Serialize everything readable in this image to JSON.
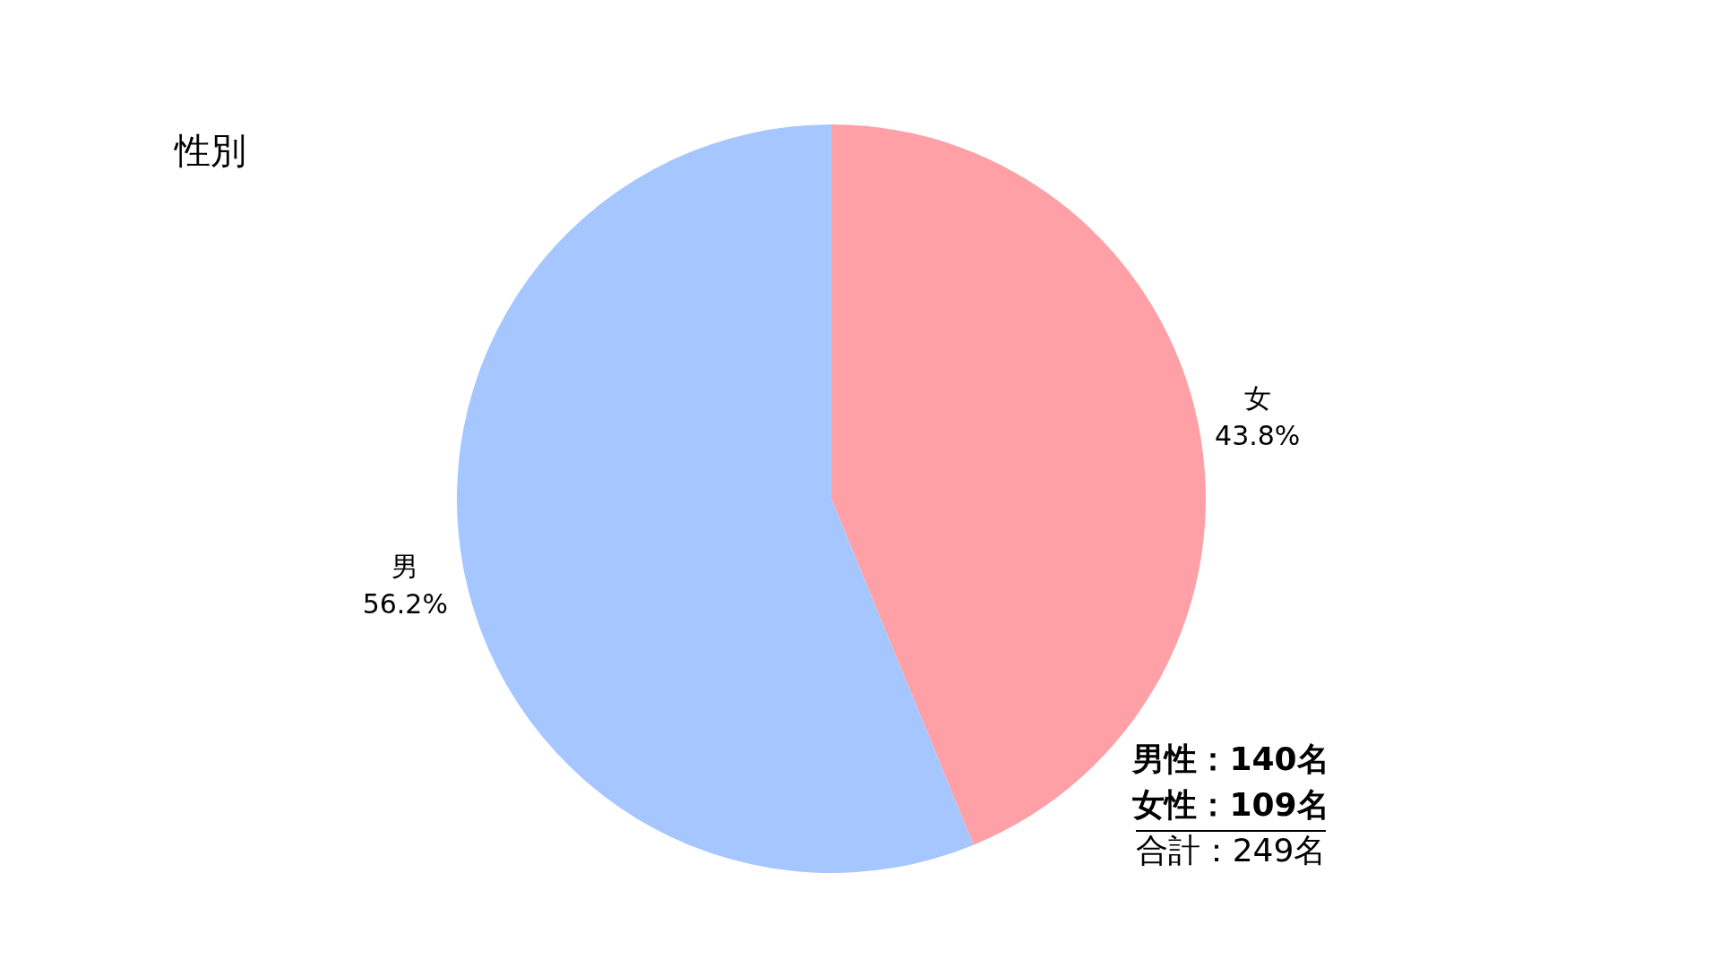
{
  "chart_data": {
    "type": "pie",
    "title": "性別",
    "categories": [
      "女",
      "男"
    ],
    "values": [
      43.8,
      56.2
    ],
    "colors": [
      "#ffa0a6",
      "#a6c6ff"
    ],
    "value_labels": [
      "43.8%",
      "56.2%"
    ],
    "annotations": [
      "男性：140名",
      "女性：109名",
      "合計：249名"
    ]
  }
}
